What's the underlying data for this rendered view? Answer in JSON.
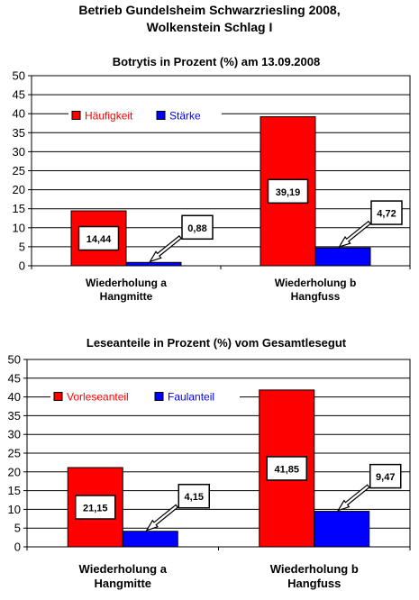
{
  "page": {
    "title_line1": "Betrieb Gundelsheim Schwarzriesling 2008,",
    "title_line2": "Wolkenstein Schlag I"
  },
  "colors": {
    "series1": "#ff0000",
    "series2": "#0000ff",
    "plot_bg": "#ffffff",
    "axis": "#000000",
    "grid": "#000000",
    "arrow_fill": "#ffffff"
  },
  "chart_data": [
    {
      "type": "bar",
      "title": "Botrytis in Prozent (%) am 13.09.2008",
      "categories": [
        [
          "Wiederholung a",
          "Hangmitte"
        ],
        [
          "Wiederholung b",
          "Hangfuss"
        ]
      ],
      "series": [
        {
          "name": "Häufigkeit",
          "values": [
            14.44,
            39.19
          ],
          "labels": [
            "14,44",
            "39,19"
          ],
          "color": "#ff0000"
        },
        {
          "name": "Stärke",
          "values": [
            0.88,
            4.72
          ],
          "labels": [
            "0,88",
            "4,72"
          ],
          "color": "#0000ff"
        }
      ],
      "ylim": [
        0,
        50
      ],
      "yticks": [
        0,
        5,
        10,
        15,
        20,
        25,
        30,
        35,
        40,
        45,
        50
      ],
      "grid": true,
      "legend_position": "inside-top-left"
    },
    {
      "type": "bar",
      "title": "Leseanteile in Prozent (%) vom Gesamtlesegut",
      "categories": [
        [
          "Wiederholung a",
          "Hangmitte"
        ],
        [
          "Wiederholung b",
          "Hangfuss"
        ]
      ],
      "series": [
        {
          "name": "Vorleseanteil",
          "values": [
            21.15,
            41.85
          ],
          "labels": [
            "21,15",
            "41,85"
          ],
          "color": "#ff0000"
        },
        {
          "name": "Faulanteil",
          "values": [
            4.15,
            9.47
          ],
          "labels": [
            "4,15",
            "9,47"
          ],
          "color": "#0000ff"
        }
      ],
      "ylim": [
        0,
        50
      ],
      "yticks": [
        0,
        5,
        10,
        15,
        20,
        25,
        30,
        35,
        40,
        45,
        50
      ],
      "grid": true,
      "legend_position": "inside-top-left"
    }
  ]
}
